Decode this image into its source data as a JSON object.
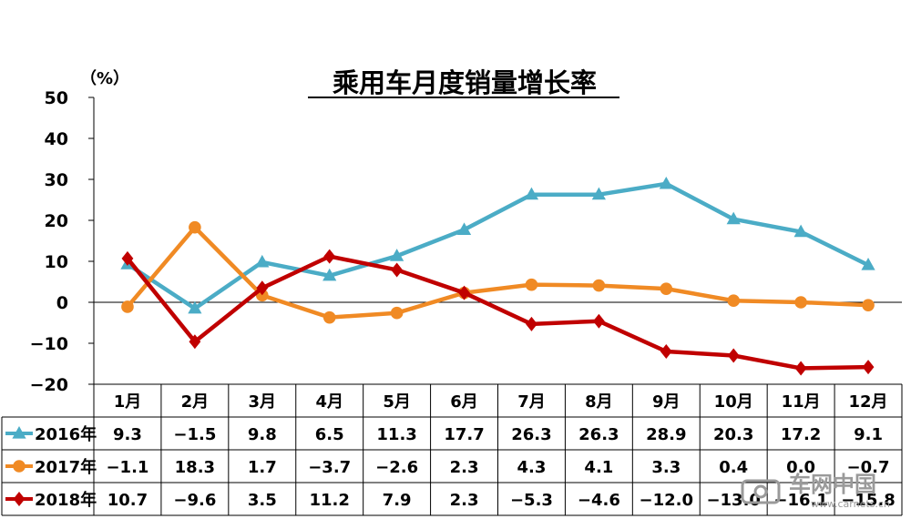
{
  "chart_data": {
    "type": "line",
    "title": "乘用车月度销量增长率",
    "unit": "（%）",
    "categories": [
      "1月",
      "2月",
      "3月",
      "4月",
      "5月",
      "6月",
      "7月",
      "8月",
      "9月",
      "10月",
      "11月",
      "12月"
    ],
    "ylim": [
      -20,
      50
    ],
    "yticks": [
      50,
      40,
      30,
      20,
      10,
      0,
      -10,
      -20
    ],
    "ytick_labels": [
      "50",
      "40",
      "30",
      "20",
      "10",
      "0",
      "−10",
      "−20"
    ],
    "series": [
      {
        "name": "2016年",
        "color": "#4bacc6",
        "marker": "triangle",
        "values": [
          9.3,
          -1.5,
          9.8,
          6.5,
          11.3,
          17.7,
          26.3,
          26.3,
          28.9,
          20.3,
          17.2,
          9.1
        ],
        "labels": [
          "9.3",
          "−1.5",
          "9.8",
          "6.5",
          "11.3",
          "17.7",
          "26.3",
          "26.3",
          "28.9",
          "20.3",
          "17.2",
          "9.1"
        ]
      },
      {
        "name": "2017年",
        "color": "#f08a24",
        "marker": "circle",
        "values": [
          -1.1,
          18.3,
          1.7,
          -3.7,
          -2.6,
          2.3,
          4.3,
          4.1,
          3.3,
          0.4,
          0.0,
          -0.7
        ],
        "labels": [
          "−1.1",
          "18.3",
          "1.7",
          "−3.7",
          "−2.6",
          "2.3",
          "4.3",
          "4.1",
          "3.3",
          "0.4",
          "0.0",
          "−0.7"
        ]
      },
      {
        "name": "2018年",
        "color": "#c00000",
        "marker": "diamond",
        "values": [
          10.7,
          -9.6,
          3.5,
          11.2,
          7.9,
          2.3,
          -5.3,
          -4.6,
          -12.0,
          -13.0,
          -16.1,
          -15.8
        ],
        "labels": [
          "10.7",
          "−9.6",
          "3.5",
          "11.2",
          "7.9",
          "2.3",
          "−5.3",
          "−4.6",
          "−12.0",
          "−13.0",
          "−16.1",
          "−15.8"
        ]
      }
    ],
    "grid": false,
    "legend": "data-table-left"
  },
  "watermark": {
    "text": "车网中国",
    "url": "www.carnets.cn"
  }
}
